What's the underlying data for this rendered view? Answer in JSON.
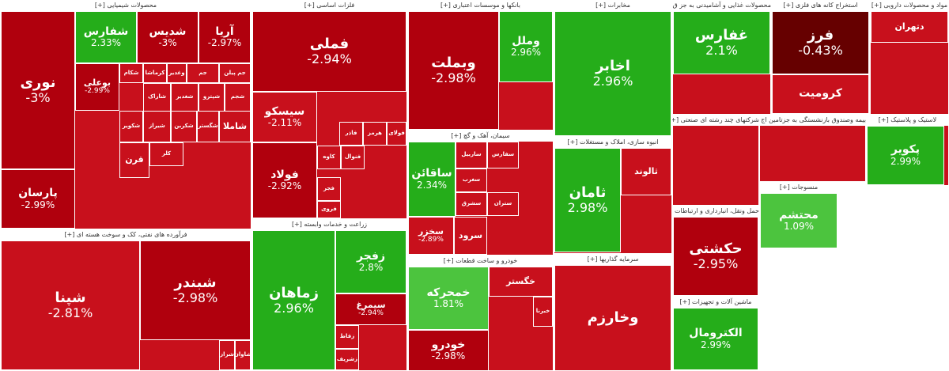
{
  "chart_data": {
    "type": "treemap",
    "colors": {
      "up_strong": "#25ad1a",
      "up_mid": "#4cc43e",
      "down_weak": "#c8101c",
      "down_strong": "#b0000d",
      "down_dark": "#660000",
      "header_bg": "#ffffff",
      "header_text": "#333333"
    },
    "sectors": [
      {
        "name": "محصولات شیمیایی [+]",
        "tiles": [
          {
            "symbol": "نوری",
            "change": "-3%"
          },
          {
            "symbol": "پارسان",
            "change": "-2.99%"
          },
          {
            "symbol": "شفارس",
            "change": "2.33%"
          },
          {
            "symbol": "شدیس",
            "change": "-3%"
          },
          {
            "symbol": "آریا",
            "change": "-2.97%"
          },
          {
            "symbol": "بوعلی",
            "change": "-2.99%"
          },
          {
            "symbol": "شکام",
            "change": ""
          },
          {
            "symbol": "کرماشا",
            "change": ""
          },
          {
            "symbol": "وغدیر",
            "change": ""
          },
          {
            "symbol": "جم",
            "change": ""
          },
          {
            "symbol": "جم پیلن",
            "change": ""
          },
          {
            "symbol": "شاراک",
            "change": ""
          },
          {
            "symbol": "شغدیر",
            "change": ""
          },
          {
            "symbol": "شپترو",
            "change": ""
          },
          {
            "symbol": "شجم",
            "change": ""
          },
          {
            "symbol": "شکویر",
            "change": ""
          },
          {
            "symbol": "شیراز",
            "change": ""
          },
          {
            "symbol": "شکربن",
            "change": ""
          },
          {
            "symbol": "شگستر",
            "change": ""
          },
          {
            "symbol": "شاملا",
            "change": ""
          },
          {
            "symbol": "قرن",
            "change": ""
          },
          {
            "symbol": "کلر",
            "change": ""
          }
        ]
      },
      {
        "name": "فرآورده های نفتی، کک و سوخت هسته ای [+]",
        "tiles": [
          {
            "symbol": "شپنا",
            "change": "-2.81%"
          },
          {
            "symbol": "شبندر",
            "change": "-2.98%"
          },
          {
            "symbol": "شراز",
            "change": ""
          },
          {
            "symbol": "شاوان",
            "change": ""
          }
        ]
      },
      {
        "name": "فلزات اساسی [+]",
        "tiles": [
          {
            "symbol": "فملی",
            "change": "-2.94%"
          },
          {
            "symbol": "سیسکو",
            "change": "-2.11%"
          },
          {
            "symbol": "فولاد",
            "change": "-2.92%"
          },
          {
            "symbol": "فاذر",
            "change": ""
          },
          {
            "symbol": "هرمز",
            "change": ""
          },
          {
            "symbol": "فولای",
            "change": ""
          },
          {
            "symbol": "کاوه",
            "change": ""
          },
          {
            "symbol": "فنوال",
            "change": ""
          },
          {
            "symbol": "فجر",
            "change": ""
          },
          {
            "symbol": "فروی",
            "change": ""
          }
        ]
      },
      {
        "name": "زراعت و خدمات وابسته [+]",
        "tiles": [
          {
            "symbol": "زماهان",
            "change": "2.96%"
          },
          {
            "symbol": "زفجر",
            "change": "2.8%"
          },
          {
            "symbol": "سیمرغ",
            "change": "-2.94%"
          },
          {
            "symbol": "زقاط",
            "change": ""
          },
          {
            "symbol": "زشریف",
            "change": ""
          }
        ]
      },
      {
        "name": "بانکها و موسسات اعتباری [+]",
        "tiles": [
          {
            "symbol": "وبملت",
            "change": "-2.98%"
          },
          {
            "symbol": "وملل",
            "change": "2.96%"
          }
        ]
      },
      {
        "name": "سیمان، آهک و گچ [+]",
        "tiles": [
          {
            "symbol": "ساقائن",
            "change": "2.34%"
          },
          {
            "symbol": "ساربیل",
            "change": ""
          },
          {
            "symbol": "سفارس",
            "change": ""
          },
          {
            "symbol": "سغرب",
            "change": ""
          },
          {
            "symbol": "سشرق",
            "change": ""
          },
          {
            "symbol": "ستران",
            "change": ""
          },
          {
            "symbol": "سخزر",
            "change": "-2.89%"
          },
          {
            "symbol": "سرود",
            "change": ""
          }
        ]
      },
      {
        "name": "خودرو و ساخت قطعات [+]",
        "tiles": [
          {
            "symbol": "خمحرکه",
            "change": "1.81%"
          },
          {
            "symbol": "خودرو",
            "change": "-2.98%"
          },
          {
            "symbol": "خگستر",
            "change": ""
          },
          {
            "symbol": "خبرنا",
            "change": ""
          }
        ]
      },
      {
        "name": "مخابرات [+]",
        "tiles": [
          {
            "symbol": "اخابر",
            "change": "2.96%"
          }
        ]
      },
      {
        "name": "انبوه سازی، املاک و مستغلات [+]",
        "tiles": [
          {
            "symbol": "ثامان",
            "change": "2.98%"
          },
          {
            "symbol": "ثالوند",
            "change": ""
          }
        ]
      },
      {
        "name": "سرمایه گذاریها [+]",
        "tiles": [
          {
            "symbol": "وخارزم",
            "change": ""
          }
        ]
      },
      {
        "name": "محصولات غذایی و آشامیدنی به جز ق [+]",
        "tiles": [
          {
            "symbol": "غفارس",
            "change": "2.1%"
          }
        ]
      },
      {
        "name": "استخراج کانه های فلزی [+]",
        "tiles": [
          {
            "symbol": "فرز",
            "change": "-0.43%"
          },
          {
            "symbol": "کروميت",
            "change": ""
          }
        ]
      },
      {
        "name": "مواد و محصولات دارویی [+]",
        "tiles": [
          {
            "symbol": "دتهران",
            "change": ""
          }
        ]
      },
      {
        "name": "شرکتهای چند رشته ای صنعتی [+]",
        "tiles": []
      },
      {
        "name": "بیمه وصندوق بازنشستگی به جزتامین اج [+]",
        "tiles": []
      },
      {
        "name": "لاستیک و پلاستیک [+]",
        "tiles": [
          {
            "symbol": "پکویر",
            "change": "2.99%"
          }
        ]
      },
      {
        "name": "منسوجات [+]",
        "tiles": [
          {
            "symbol": "محتشم",
            "change": "1.09%"
          }
        ]
      },
      {
        "name": "حمل ونقل، انبارداری و ارتباطات [+]",
        "tiles": [
          {
            "symbol": "حکشتی",
            "change": "-2.95%"
          }
        ]
      },
      {
        "name": "ماشین آلات و تجهیزات [+]",
        "tiles": [
          {
            "symbol": "الکترومال",
            "change": "2.99%"
          }
        ]
      }
    ]
  }
}
